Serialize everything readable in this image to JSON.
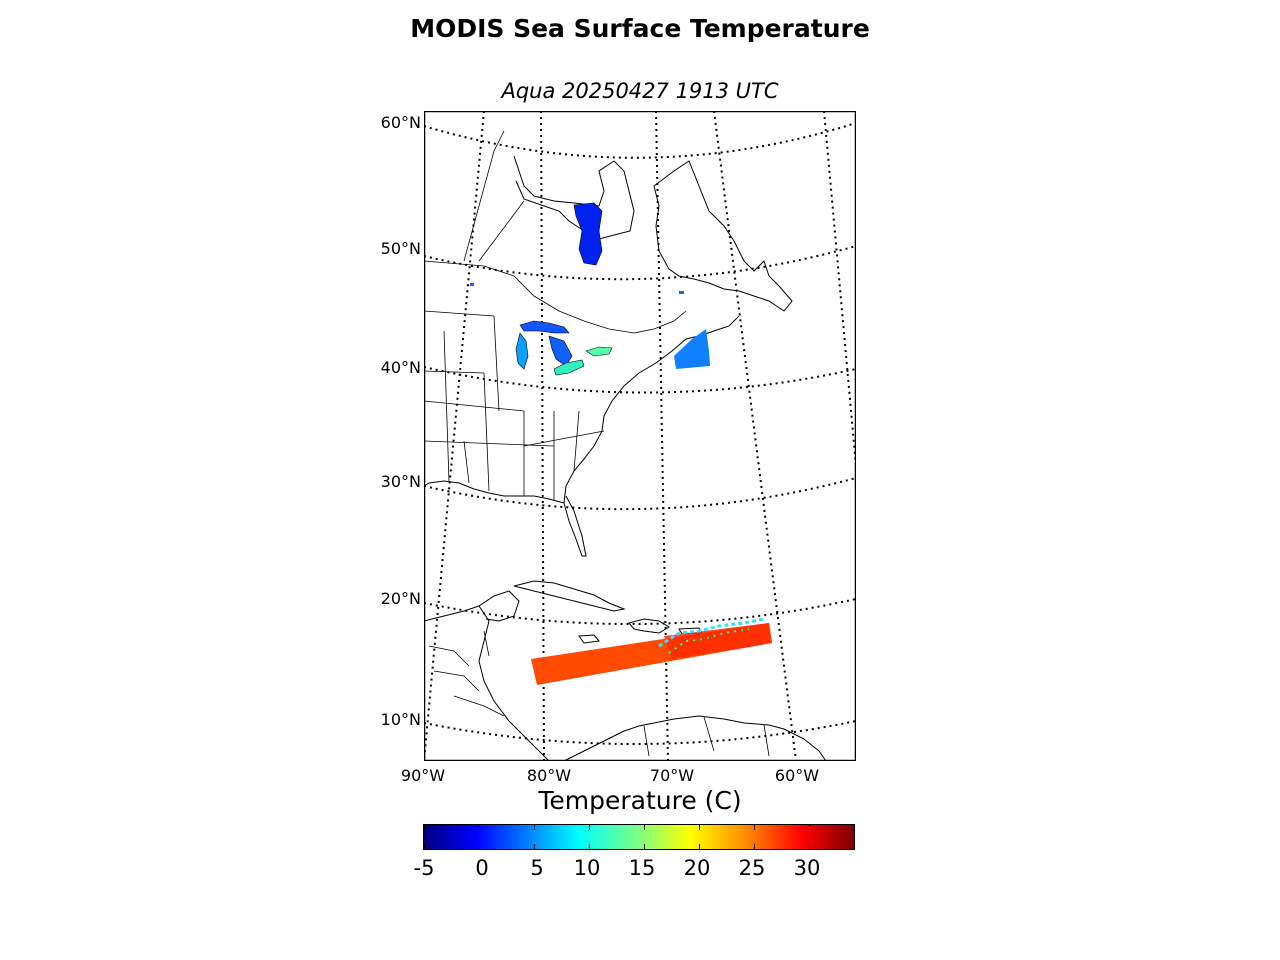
{
  "title": "MODIS Sea Surface Temperature",
  "subtitle": "Aqua 20250427 1913 UTC",
  "map": {
    "projection": "lambert-conformal",
    "latitude_labels": [
      "60°N",
      "50°N",
      "40°N",
      "30°N",
      "20°N",
      "10°N"
    ],
    "longitude_labels": [
      "90°W",
      "80°W",
      "70°W",
      "60°W"
    ],
    "graticule_style": "dotted",
    "land_color": "#ffffff",
    "coastline_color": "#000000"
  },
  "colorbar": {
    "title": "Temperature (C)",
    "colormap": "jet",
    "range": [
      -5,
      34
    ],
    "tick_labels": [
      "-5",
      "0",
      "5",
      "10",
      "15",
      "20",
      "25",
      "30"
    ]
  },
  "sst_swaths": [
    {
      "region": "Hudson Bay",
      "value_range": [
        -2,
        0
      ]
    },
    {
      "region": "Great Lakes",
      "value_range": [
        0,
        12
      ]
    },
    {
      "region": "Gulf of Maine",
      "value_range": [
        4,
        8
      ]
    },
    {
      "region": "Caribbean Sea",
      "value_range": [
        26,
        29
      ]
    }
  ]
}
